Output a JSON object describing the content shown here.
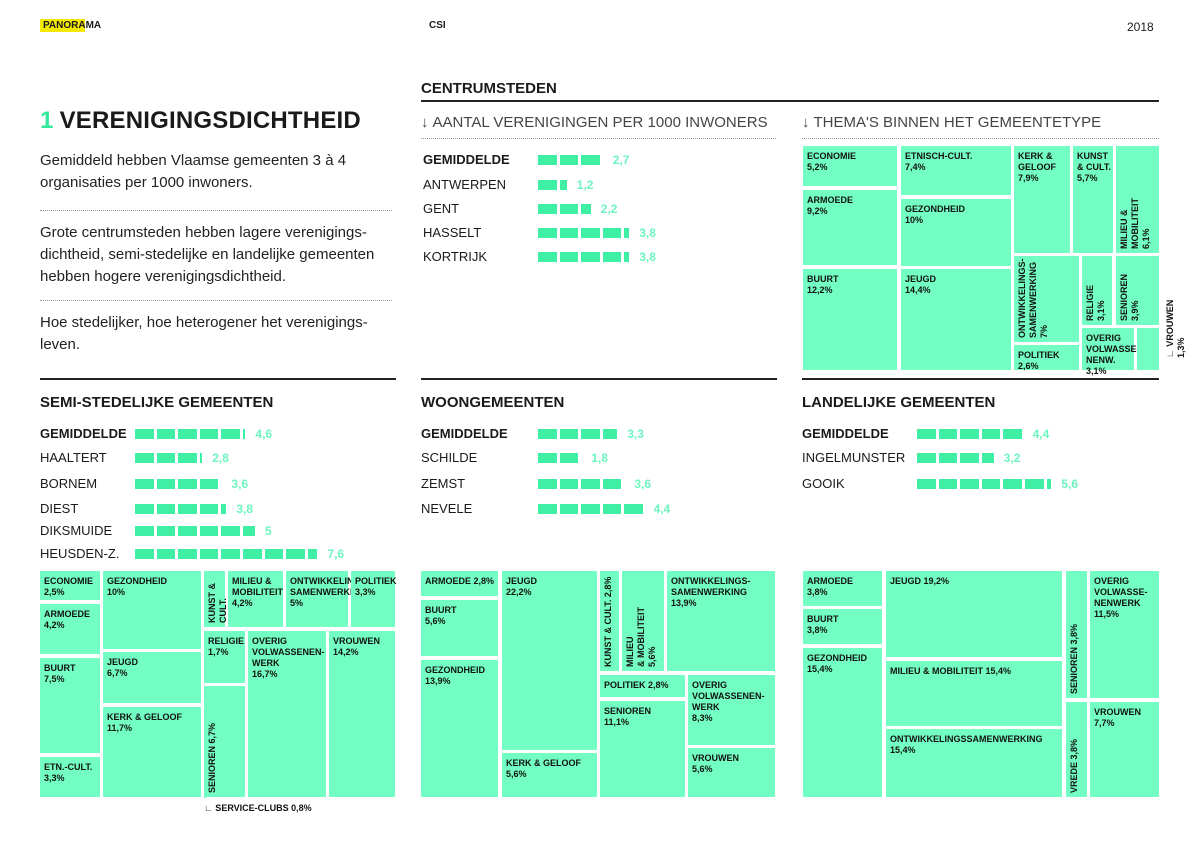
{
  "header": {
    "brand": "PANORAMA",
    "section": "CSI",
    "year": "2018"
  },
  "title": {
    "number": "1",
    "text": "VERENIGINGSDICHTHEID"
  },
  "intro": {
    "p1": "Gemiddeld hebben Vlaamse gemeenten 3 à 4 organisaties per 1000 inwoners.",
    "p2": "Grote centrumsteden hebben lagere verenigings-dichtheid, semi-stedelijke en landelijke gemeenten hebben hogere verenigingsdichtheid.",
    "p3": "Hoe stedelijker, hoe heterogener het verenigings-leven."
  },
  "centrum": {
    "title": "CENTRUMSTEDEN",
    "bars_heading": "AANTAL VERENIGINGEN PER 1000 INWONERS",
    "themes_heading": "THEMA'S BINNEN HET GEMEENTETYPE",
    "arrow": "↓"
  },
  "colors": {
    "bar": "#3ff0a4",
    "value_text": "#6df5c0",
    "treemap": "#73ffc3",
    "accent_number": "#33e89a",
    "brand_highlight": "#f3ea00"
  },
  "chart_data": [
    {
      "type": "bar",
      "group": "CENTRUMSTEDEN",
      "categories": [
        "GEMIDDELDE",
        "ANTWERPEN",
        "GENT",
        "HASSELT",
        "KORTRIJK"
      ],
      "values": [
        2.7,
        1.2,
        2.2,
        3.8,
        3.8
      ],
      "labels": [
        "2,7",
        "1,2",
        "2,2",
        "3,8",
        "3,8"
      ]
    },
    {
      "type": "bar",
      "group": "SEMI-STEDELIJKE GEMEENTEN",
      "categories": [
        "GEMIDDELDE",
        "HAALTERT",
        "BORNEM",
        "DIEST",
        "DIKSMUIDE",
        "HEUSDEN-Z."
      ],
      "values": [
        4.6,
        2.8,
        3.6,
        3.8,
        5,
        7.6
      ],
      "labels": [
        "4,6",
        "2,8",
        "3,6",
        "3,8",
        "5",
        "7,6"
      ]
    },
    {
      "type": "bar",
      "group": "WOONGEMEENTEN",
      "categories": [
        "GEMIDDELDE",
        "SCHILDE",
        "ZEMST",
        "NEVELE"
      ],
      "values": [
        3.3,
        1.8,
        3.6,
        4.4
      ],
      "labels": [
        "3,3",
        "1,8",
        "3,6",
        "4,4"
      ]
    },
    {
      "type": "bar",
      "group": "LANDELIJKE GEMEENTEN",
      "categories": [
        "GEMIDDELDE",
        "INGELMUNSTER",
        "GOOIK"
      ],
      "values": [
        4.4,
        3.2,
        5.6
      ],
      "labels": [
        "4,4",
        "3,2",
        "5,6"
      ]
    },
    {
      "type": "treemap",
      "group": "CENTRUMSTEDEN",
      "items": [
        {
          "label": "ECONOMIE\n5,2%",
          "value": 5.2
        },
        {
          "label": "ETNISCH-CULT.\n7,4%",
          "value": 7.4
        },
        {
          "label": "KERK &\nGELOOF\n7,9%",
          "value": 7.9
        },
        {
          "label": "KUNST\n& CULT.\n5,7%",
          "value": 5.7
        },
        {
          "label": "MILIEU &\nMOBILITEIT\n6,1%",
          "value": 6.1
        },
        {
          "label": "ARMOEDE\n9,2%",
          "value": 9.2
        },
        {
          "label": "GEZONDHEID\n10%",
          "value": 10
        },
        {
          "label": "BUURT\n12,2%",
          "value": 12.2
        },
        {
          "label": "JEUGD\n14,4%",
          "value": 14.4
        },
        {
          "label": "ONTWIKKELINGS-\nSAMENWERKING\n7%",
          "value": 7
        },
        {
          "label": "RELIGIE\n3,1%",
          "value": 3.1
        },
        {
          "label": "SENIOREN\n3,9%",
          "value": 3.9
        },
        {
          "label": "OVERIG\nVOLWASSE-\nNENW. 3,1%",
          "value": 3.1
        },
        {
          "label": "POLITIEK 2,6%",
          "value": 2.6
        },
        {
          "label": "VROUWEN 1,3%",
          "value": 1.3
        }
      ]
    },
    {
      "type": "treemap",
      "group": "SEMI-STEDELIJKE GEMEENTEN",
      "items": [
        {
          "label": "ECONOMIE\n2,5%",
          "value": 2.5
        },
        {
          "label": "ARMOEDE\n4,2%",
          "value": 4.2
        },
        {
          "label": "BUURT\n7,5%",
          "value": 7.5
        },
        {
          "label": "ETN.-CULT.\n3,3%",
          "value": 3.3
        },
        {
          "label": "GEZONDHEID\n10%",
          "value": 10
        },
        {
          "label": "JEUGD\n6,7%",
          "value": 6.7
        },
        {
          "label": "KERK & GELOOF\n11,7%",
          "value": 11.7
        },
        {
          "label": "KUNST & CULT.\n1,7%",
          "value": 1.7
        },
        {
          "label": "MILIEU &\nMOBILITEIT\n4,2%",
          "value": 4.2
        },
        {
          "label": "ONTWIKKELINGS-\nSAMENWERKING\n5%",
          "value": 5
        },
        {
          "label": "POLITIEK\n3,3%",
          "value": 3.3
        },
        {
          "label": "RELIGIE\n1,7%",
          "value": 1.7
        },
        {
          "label": "SENIOREN 6,7%",
          "value": 6.7
        },
        {
          "label": "OVERIG\nVOLWASSENEN-\nWERK\n16,7%",
          "value": 16.7
        },
        {
          "label": "VROUWEN\n14,2%",
          "value": 14.2
        },
        {
          "label": "SERVICE-CLUBS 0,8%",
          "value": 0.8
        }
      ]
    },
    {
      "type": "treemap",
      "group": "WOONGEMEENTEN",
      "items": [
        {
          "label": "ARMOEDE 2,8%",
          "value": 2.8
        },
        {
          "label": "BUURT\n5,6%",
          "value": 5.6
        },
        {
          "label": "GEZONDHEID\n13,9%",
          "value": 13.9
        },
        {
          "label": "JEUGD\n22,2%",
          "value": 22.2
        },
        {
          "label": "KERK & GELOOF\n5,6%",
          "value": 5.6
        },
        {
          "label": "KUNST & CULT. 2,8%",
          "value": 2.8
        },
        {
          "label": "MILIEU\n& MOBILITEIT\n5,6%",
          "value": 5.6
        },
        {
          "label": "ONTWIKKELINGS-\nSAMENWERKING\n13,9%",
          "value": 13.9
        },
        {
          "label": "POLITIEK 2,8%",
          "value": 2.8
        },
        {
          "label": "SENIOREN\n11,1%",
          "value": 11.1
        },
        {
          "label": "OVERIG\nVOLWASSENEN-\nWERK\n8,3%",
          "value": 8.3
        },
        {
          "label": "VROUWEN\n5,6%",
          "value": 5.6
        }
      ]
    },
    {
      "type": "treemap",
      "group": "LANDELIJKE GEMEENTEN",
      "items": [
        {
          "label": "ARMOEDE\n3,8%",
          "value": 3.8
        },
        {
          "label": "BUURT\n3,8%",
          "value": 3.8
        },
        {
          "label": "GEZONDHEID\n15,4%",
          "value": 15.4
        },
        {
          "label": "JEUGD 19,2%",
          "value": 19.2
        },
        {
          "label": "MILIEU & MOBILITEIT 15,4%",
          "value": 15.4
        },
        {
          "label": "ONTWIKKELINGSSAMENWERKING\n15,4%",
          "value": 15.4
        },
        {
          "label": "SENIOREN 3,8%",
          "value": 3.8
        },
        {
          "label": "VREDE 3,8%",
          "value": 3.8
        },
        {
          "label": "OVERIG\nVOLWASSE-\nNENWERK\n11,5%",
          "value": 11.5
        },
        {
          "label": "VROUWEN\n7,7%",
          "value": 7.7
        }
      ]
    }
  ]
}
